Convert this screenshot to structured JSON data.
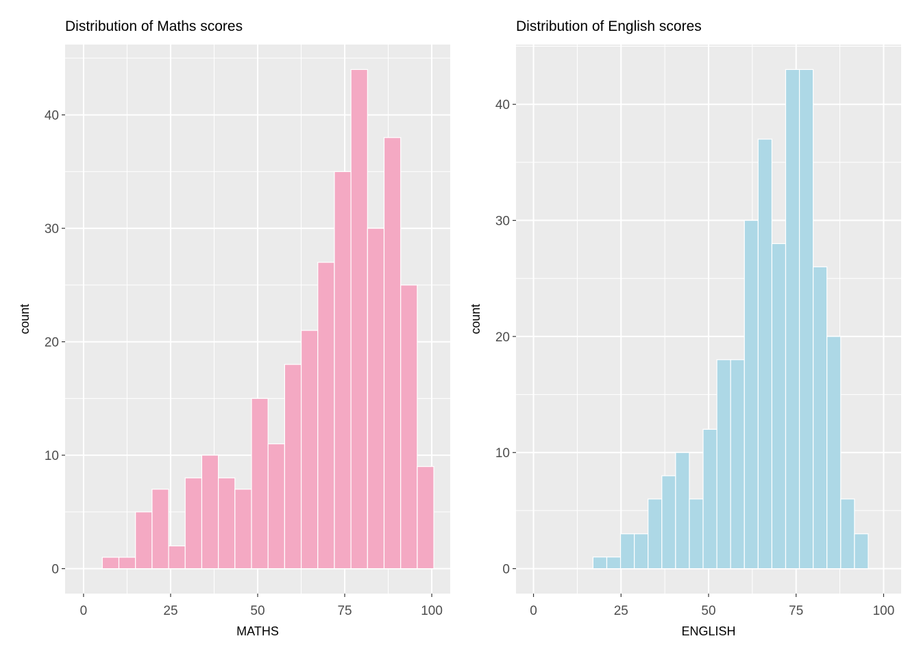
{
  "chart_data": [
    {
      "type": "bar",
      "subtype": "histogram",
      "title": "Distribution of Maths scores",
      "xlabel": "MATHS",
      "ylabel": "count",
      "xlim": [
        -5.3,
        105.3
      ],
      "ylim": [
        -2.2,
        46.2
      ],
      "xticks": [
        0,
        25,
        50,
        75,
        100
      ],
      "yticks": [
        0,
        10,
        20,
        30,
        40
      ],
      "bin_width": 4.76,
      "bins": [
        {
          "x0": 0.63,
          "x1": 5.39,
          "count": 0
        },
        {
          "x0": 5.39,
          "x1": 10.15,
          "count": 1
        },
        {
          "x0": 10.15,
          "x1": 14.91,
          "count": 1
        },
        {
          "x0": 14.91,
          "x1": 19.67,
          "count": 5
        },
        {
          "x0": 19.67,
          "x1": 24.43,
          "count": 7
        },
        {
          "x0": 24.43,
          "x1": 29.19,
          "count": 2
        },
        {
          "x0": 29.19,
          "x1": 33.95,
          "count": 8
        },
        {
          "x0": 33.95,
          "x1": 38.71,
          "count": 10
        },
        {
          "x0": 38.71,
          "x1": 43.47,
          "count": 8
        },
        {
          "x0": 43.47,
          "x1": 48.23,
          "count": 7
        },
        {
          "x0": 48.23,
          "x1": 52.99,
          "count": 15
        },
        {
          "x0": 52.99,
          "x1": 57.75,
          "count": 11
        },
        {
          "x0": 57.75,
          "x1": 62.51,
          "count": 18
        },
        {
          "x0": 62.51,
          "x1": 67.27,
          "count": 21
        },
        {
          "x0": 67.27,
          "x1": 72.03,
          "count": 27
        },
        {
          "x0": 72.03,
          "x1": 76.79,
          "count": 35
        },
        {
          "x0": 76.79,
          "x1": 81.55,
          "count": 44
        },
        {
          "x0": 81.55,
          "x1": 86.31,
          "count": 30
        },
        {
          "x0": 86.31,
          "x1": 91.07,
          "count": 38
        },
        {
          "x0": 91.07,
          "x1": 95.83,
          "count": 25
        },
        {
          "x0": 95.83,
          "x1": 100.59,
          "count": 9
        }
      ],
      "fill_color": "#f4a9c3",
      "bar_outline": "#ffffff",
      "panel_background": "#ebebeb",
      "grid": true
    },
    {
      "type": "bar",
      "subtype": "histogram",
      "title": "Distribution of English scores",
      "xlabel": "ENGLISH",
      "ylabel": "count",
      "xlim": [
        -5.0,
        105.0
      ],
      "ylim": [
        -2.15,
        45.15
      ],
      "xticks": [
        0,
        25,
        50,
        75,
        100
      ],
      "yticks": [
        0,
        10,
        20,
        30,
        40
      ],
      "bin_width": 3.93,
      "bins": [
        {
          "x0": 17.0,
          "x1": 20.93,
          "count": 1
        },
        {
          "x0": 20.93,
          "x1": 24.86,
          "count": 1
        },
        {
          "x0": 24.86,
          "x1": 28.79,
          "count": 3
        },
        {
          "x0": 28.79,
          "x1": 32.72,
          "count": 3
        },
        {
          "x0": 32.72,
          "x1": 36.65,
          "count": 6
        },
        {
          "x0": 36.65,
          "x1": 40.58,
          "count": 8
        },
        {
          "x0": 40.58,
          "x1": 44.51,
          "count": 10
        },
        {
          "x0": 44.51,
          "x1": 48.44,
          "count": 6
        },
        {
          "x0": 48.44,
          "x1": 52.37,
          "count": 12
        },
        {
          "x0": 52.37,
          "x1": 56.3,
          "count": 18
        },
        {
          "x0": 56.3,
          "x1": 60.23,
          "count": 18
        },
        {
          "x0": 60.23,
          "x1": 64.16,
          "count": 30
        },
        {
          "x0": 64.16,
          "x1": 68.09,
          "count": 37
        },
        {
          "x0": 68.09,
          "x1": 72.02,
          "count": 28
        },
        {
          "x0": 72.02,
          "x1": 75.95,
          "count": 43
        },
        {
          "x0": 75.95,
          "x1": 79.88,
          "count": 43
        },
        {
          "x0": 79.88,
          "x1": 83.81,
          "count": 26
        },
        {
          "x0": 83.81,
          "x1": 87.74,
          "count": 20
        },
        {
          "x0": 87.74,
          "x1": 91.67,
          "count": 6
        },
        {
          "x0": 91.67,
          "x1": 95.6,
          "count": 3
        }
      ],
      "fill_color": "#add8e6",
      "bar_outline": "#ffffff",
      "panel_background": "#ebebeb",
      "grid": true
    }
  ]
}
